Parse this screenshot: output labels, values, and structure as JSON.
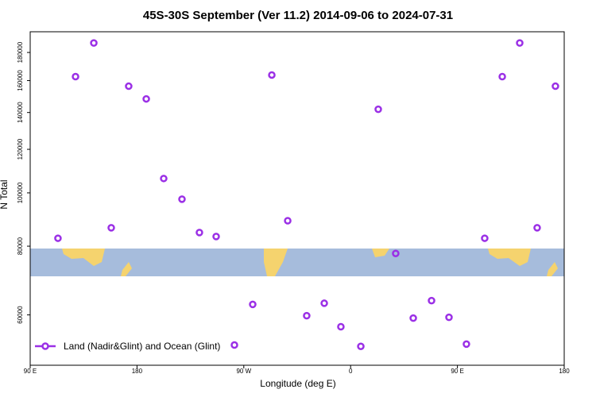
{
  "chart_data": {
    "type": "scatter",
    "title": "45S-30S September (Ver 11.2)   2014-09-06 to 2024-07-31",
    "x_label": "Longitude (deg E)",
    "y_label": "N Total",
    "log_y": true,
    "grid": false,
    "legend_position": "bottom-left",
    "xlim": [
      90,
      540
    ],
    "ylim": [
      48600,
      196300
    ],
    "xticks": [
      {
        "value": 90,
        "label": "90 E"
      },
      180,
      {
        "value": 270,
        "label": "90 W"
      },
      {
        "value": 360,
        "label": "0"
      },
      {
        "value": 450,
        "label": "90 E"
      },
      {
        "value": 540,
        "label": "180"
      }
    ],
    "yticks": [
      60000,
      80000,
      100000,
      120000,
      140000,
      160000,
      180000
    ],
    "series": [
      {
        "name": "Land (Nadir&Glint) and Ocean (Glint)",
        "color": "#9b30e6",
        "x": [
          113.4,
          128.2,
          143.6,
          158.3,
          173.0,
          187.8,
          202.5,
          217.9,
          232.6,
          246.7,
          262.1,
          277.5,
          293.6,
          307.0,
          323.0,
          337.8,
          351.8,
          368.6,
          383.3,
          398.0,
          412.8,
          428.2,
          442.9,
          457.6,
          473.0,
          487.8,
          502.5,
          517.2,
          532.6
        ],
        "values": [
          82700,
          162700,
          187300,
          86400,
          156300,
          148200,
          106200,
          97400,
          84700,
          83300,
          52900,
          62700,
          163800,
          89000,
          59800,
          63000,
          57100,
          52600,
          141900,
          77600,
          59200,
          63700,
          59400,
          53100,
          82700,
          162700,
          187300,
          86400,
          156300
        ]
      }
    ]
  }
}
